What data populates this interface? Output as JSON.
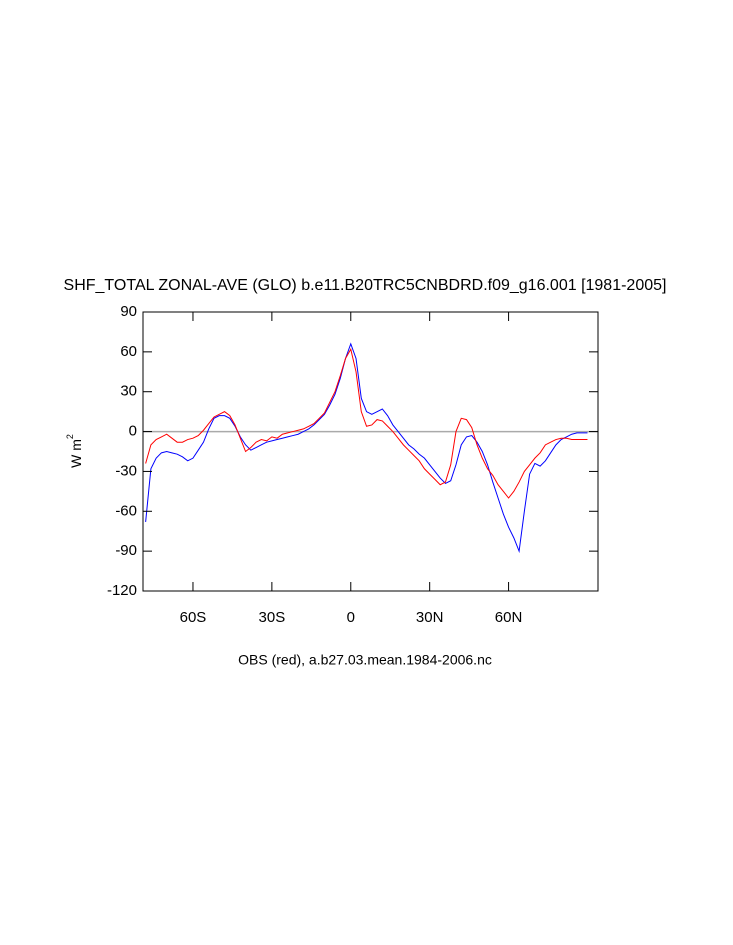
{
  "chart_data": {
    "type": "line",
    "title": "SHF_TOTAL ZONAL-AVE (GLO) b.e11.B20TRC5CNBDRD.f09_g16.001 [1981-2005]",
    "xlabel": "OBS (red), a.b27.03.mean.1984-2006.nc",
    "ylabel": "W m",
    "ylabel_sup": "2",
    "x": [
      -78,
      -76,
      -74,
      -72,
      -70,
      -68,
      -66,
      -64,
      -62,
      -60,
      -58,
      -56,
      -54,
      -52,
      -50,
      -48,
      -46,
      -44,
      -42,
      -40,
      -38,
      -36,
      -34,
      -32,
      -30,
      -28,
      -26,
      -24,
      -22,
      -20,
      -18,
      -16,
      -14,
      -12,
      -10,
      -8,
      -6,
      -4,
      -2,
      0,
      2,
      4,
      6,
      8,
      10,
      12,
      14,
      16,
      18,
      20,
      22,
      24,
      26,
      28,
      30,
      32,
      34,
      36,
      38,
      40,
      42,
      44,
      46,
      48,
      50,
      52,
      54,
      56,
      58,
      60,
      62,
      64,
      66,
      68,
      70,
      72,
      74,
      76,
      78,
      80,
      82,
      84,
      86,
      88,
      90
    ],
    "series": [
      {
        "color": "#0000ff",
        "values": [
          -68,
          -28,
          -20,
          -16,
          -15,
          -16,
          -17,
          -19,
          -22,
          -20,
          -14,
          -8,
          2,
          10,
          12,
          12,
          10,
          4,
          -4,
          -10,
          -14,
          -12,
          -10,
          -8,
          -7,
          -6,
          -5,
          -4,
          -3,
          -2,
          0,
          2,
          5,
          9,
          13,
          20,
          28,
          40,
          55,
          66,
          55,
          25,
          15,
          13,
          15,
          17,
          12,
          5,
          0,
          -5,
          -10,
          -13,
          -17,
          -20,
          -25,
          -30,
          -35,
          -39,
          -37,
          -25,
          -10,
          -4,
          -3,
          -8,
          -15,
          -25,
          -38,
          -50,
          -62,
          -72,
          -80,
          -90,
          -60,
          -32,
          -24,
          -26,
          -22,
          -16,
          -10,
          -6,
          -4,
          -2,
          -1,
          -1,
          -1
        ]
      },
      {
        "color": "#ff0000",
        "values": [
          -24,
          -10,
          -6,
          -4,
          -2,
          -5,
          -8,
          -8,
          -6,
          -5,
          -3,
          1,
          6,
          11,
          13,
          15,
          12,
          5,
          -5,
          -15,
          -12,
          -8,
          -6,
          -7,
          -4,
          -5,
          -2,
          -1,
          0,
          1,
          2,
          4,
          6,
          10,
          14,
          22,
          30,
          42,
          55,
          62,
          45,
          15,
          4,
          5,
          9,
          8,
          4,
          0,
          -5,
          -10,
          -14,
          -18,
          -22,
          -28,
          -32,
          -36,
          -40,
          -38,
          -25,
          0,
          10,
          9,
          3,
          -10,
          -20,
          -28,
          -33,
          -40,
          -45,
          -50,
          -45,
          -38,
          -30,
          -25,
          -20,
          -16,
          -10,
          -8,
          -6,
          -5,
          -5,
          -6,
          -6,
          -6,
          -6
        ]
      }
    ],
    "xlim": [
      -79,
      94
    ],
    "xticks": [
      {
        "value": -60,
        "label": "60S"
      },
      {
        "value": -30,
        "label": "30S"
      },
      0,
      {
        "value": 30,
        "label": "30N"
      },
      {
        "value": 60,
        "label": "60N"
      }
    ],
    "ylim": [
      -120,
      90
    ],
    "yticks": [
      -120,
      -90,
      -60,
      -30,
      0,
      30,
      60,
      90
    ],
    "hline": 0,
    "hline_color": "#aaaaaa"
  }
}
